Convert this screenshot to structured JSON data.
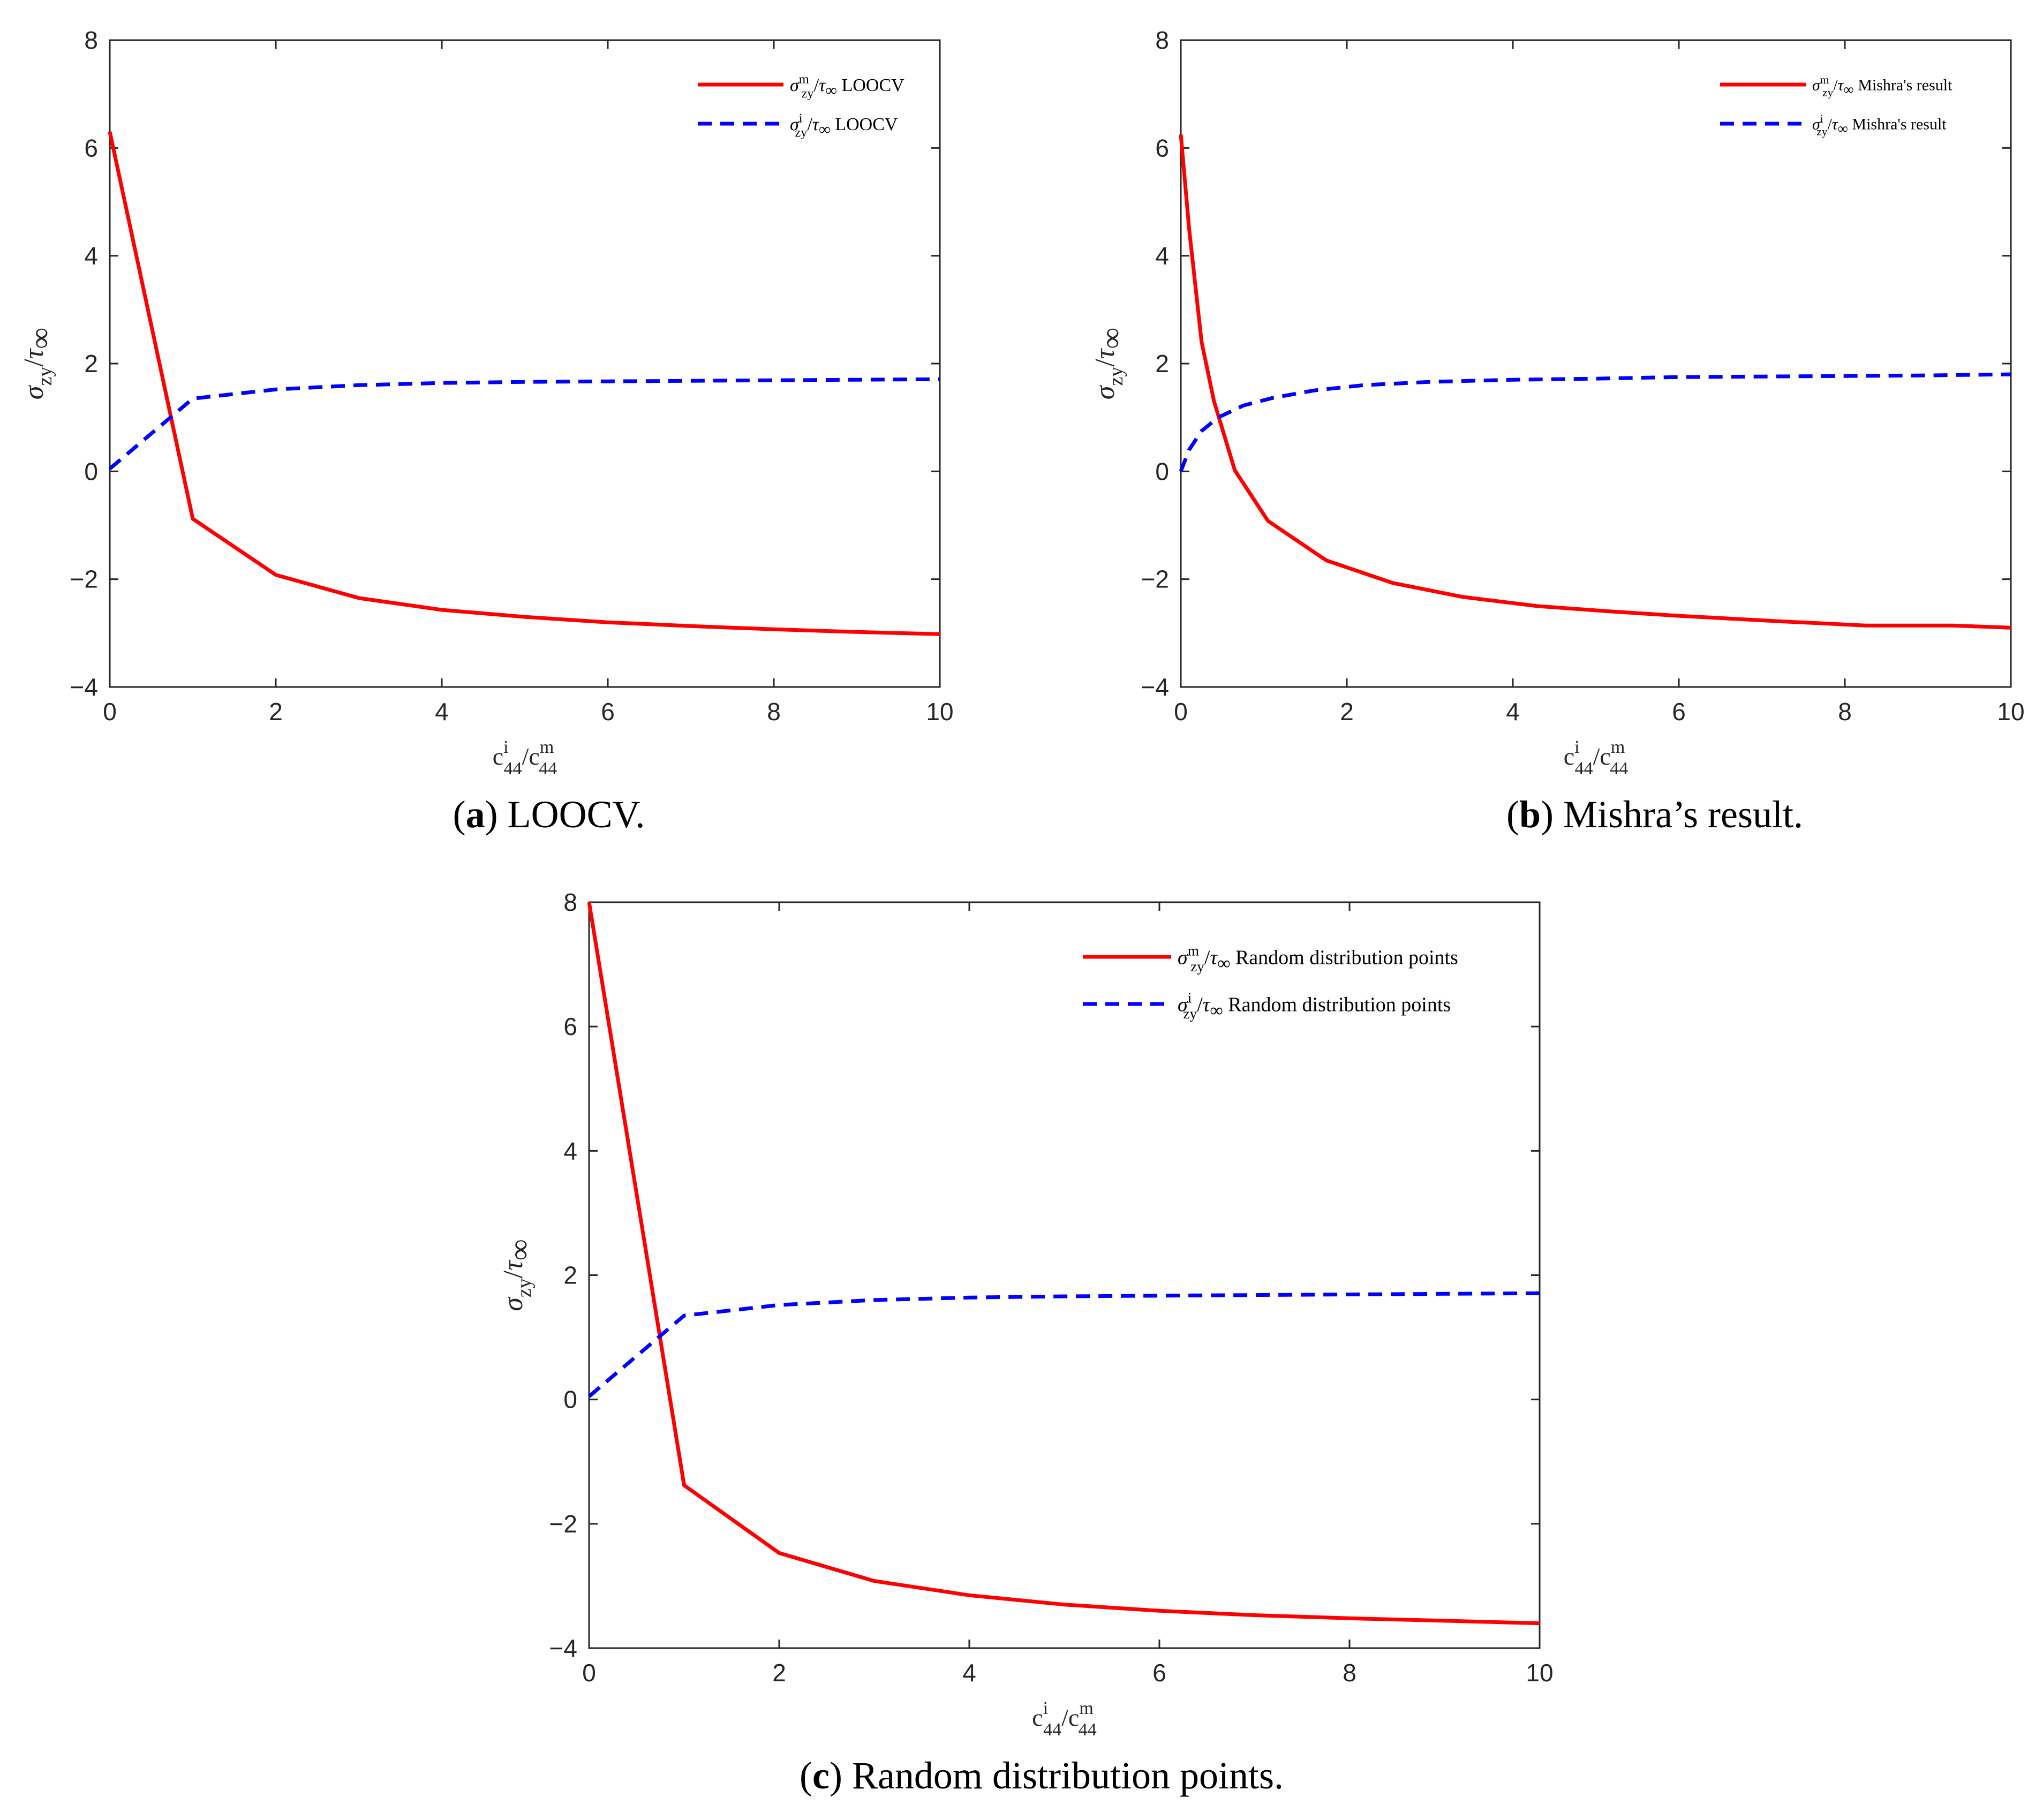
{
  "colors": {
    "matrix": "#ff0000",
    "inclusion": "#0000ff",
    "axis": "#262626"
  },
  "chart_data": [
    {
      "id": "a",
      "type": "line",
      "caption": {
        "letter": "a",
        "text": "LOOCV."
      },
      "xlabel": {
        "base": "c",
        "num_sup": "i",
        "num_sub": "44",
        "den_sup": "m",
        "den_sub": "44"
      },
      "ylabel": {
        "sigma": "σ",
        "sub": "zy",
        "tau": "τ",
        "inf": "∞"
      },
      "xlim": [
        0,
        10
      ],
      "ylim": [
        -4,
        8
      ],
      "xticks": [
        "0",
        "2",
        "4",
        "6",
        "8",
        "10"
      ],
      "yticks": [
        "−4",
        "−2",
        "0",
        "2",
        "4",
        "6",
        "8"
      ],
      "legend_position": "top-right",
      "series": [
        {
          "name": "σ^m_zy/τ∞ LOOCV",
          "legend_sup": "m",
          "legend_label": "LOOCV",
          "style": "solid",
          "x": [
            0,
            1,
            2,
            3,
            4,
            5,
            6,
            7,
            8,
            9,
            10
          ],
          "y": [
            6.3,
            -0.88,
            -1.92,
            -2.35,
            -2.57,
            -2.7,
            -2.8,
            -2.87,
            -2.93,
            -2.98,
            -3.02
          ]
        },
        {
          "name": "σ^i_zy/τ∞ LOOCV",
          "legend_sup": "i",
          "legend_label": "LOOCV",
          "style": "dashed",
          "x": [
            0,
            1,
            2,
            3,
            4,
            5,
            6,
            7,
            8,
            9,
            10
          ],
          "y": [
            0.05,
            1.35,
            1.52,
            1.6,
            1.64,
            1.66,
            1.67,
            1.68,
            1.69,
            1.7,
            1.71
          ]
        }
      ]
    },
    {
      "id": "b",
      "type": "line",
      "caption": {
        "letter": "b",
        "text": "Mishra’s result."
      },
      "xlabel": {
        "base": "c",
        "num_sup": "i",
        "num_sub": "44",
        "den_sup": "m",
        "den_sub": "44"
      },
      "ylabel": {
        "sigma": "σ",
        "sub": "zy",
        "tau": "τ",
        "inf": "∞"
      },
      "xlim": [
        0,
        10
      ],
      "ylim": [
        -4,
        8
      ],
      "xticks": [
        "0",
        "2",
        "4",
        "6",
        "8",
        "10"
      ],
      "yticks": [
        "−4",
        "−2",
        "0",
        "2",
        "4",
        "6",
        "8"
      ],
      "legend_position": "top-right",
      "series": [
        {
          "name": "σ^m_zy/τ∞ Mishra's result",
          "legend_sup": "m",
          "legend_label": "Mishra's result",
          "style": "solid",
          "x": [
            0,
            0.1,
            0.25,
            0.4,
            0.65,
            1.05,
            1.75,
            2.55,
            3.4,
            4.3,
            5.2,
            6.0,
            7.2,
            8.25,
            9.3,
            10
          ],
          "y": [
            6.25,
            4.5,
            2.4,
            1.3,
            0.02,
            -0.92,
            -1.65,
            -2.07,
            -2.33,
            -2.5,
            -2.6,
            -2.68,
            -2.78,
            -2.86,
            -2.86,
            -2.9
          ]
        },
        {
          "name": "σ^i_zy/τ∞ Mishra's result",
          "legend_sup": "i",
          "legend_label": "Mishra's result",
          "style": "dashed",
          "x": [
            0,
            0.1,
            0.25,
            0.45,
            0.75,
            1.1,
            1.6,
            2.2,
            3.0,
            4.0,
            5.0,
            6.0,
            7.0,
            8.0,
            9.0,
            10
          ],
          "y": [
            0.0,
            0.4,
            0.75,
            1.0,
            1.22,
            1.36,
            1.5,
            1.6,
            1.66,
            1.7,
            1.72,
            1.75,
            1.76,
            1.77,
            1.78,
            1.8
          ]
        }
      ]
    },
    {
      "id": "c",
      "type": "line",
      "caption": {
        "letter": "c",
        "text": "Random distribution points."
      },
      "xlabel": {
        "base": "c",
        "num_sup": "i",
        "num_sub": "44",
        "den_sup": "m",
        "den_sub": "44"
      },
      "ylabel": {
        "sigma": "σ",
        "sub": "zy",
        "tau": "τ",
        "inf": "∞"
      },
      "xlim": [
        0,
        10
      ],
      "ylim": [
        -4,
        8
      ],
      "xticks": [
        "0",
        "2",
        "4",
        "6",
        "8",
        "10"
      ],
      "yticks": [
        "−4",
        "−2",
        "0",
        "2",
        "4",
        "6",
        "8"
      ],
      "legend_position": "top-right",
      "series": [
        {
          "name": "σ^m_zy/τ∞ Random distribution points",
          "legend_sup": "m",
          "legend_label": "Random distribution points",
          "style": "solid",
          "x": [
            0,
            1,
            2,
            3,
            4,
            5,
            6,
            7,
            8,
            9,
            10
          ],
          "y": [
            8.0,
            -1.38,
            -2.47,
            -2.92,
            -3.15,
            -3.3,
            -3.4,
            -3.47,
            -3.52,
            -3.56,
            -3.6
          ]
        },
        {
          "name": "σ^i_zy/τ∞ Random distribution points",
          "legend_sup": "i",
          "legend_label": "Random distribution points",
          "style": "dashed",
          "x": [
            0,
            1,
            2,
            3,
            4,
            5,
            6,
            7,
            8,
            9,
            10
          ],
          "y": [
            0.05,
            1.35,
            1.52,
            1.6,
            1.64,
            1.66,
            1.67,
            1.68,
            1.69,
            1.7,
            1.71
          ]
        }
      ]
    }
  ]
}
